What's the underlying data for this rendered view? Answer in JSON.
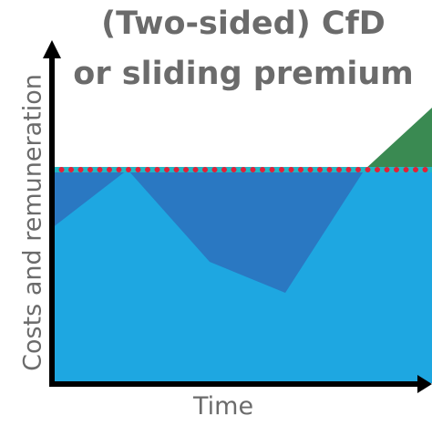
{
  "title": {
    "line1": "(Two-sided) CfD",
    "line2": "or sliding premium"
  },
  "axes": {
    "y_label": "Costs and remuneration",
    "x_label": "Time"
  },
  "colors": {
    "market_revenue_area": "#1EA7E1",
    "premium_area": "#2A78C2",
    "payback_area": "#3A8A52",
    "strike_line_dots": "#E2203A",
    "strike_line_base": "#20B7C4",
    "axis": "#000000",
    "text": "#6B6B6B"
  }
}
